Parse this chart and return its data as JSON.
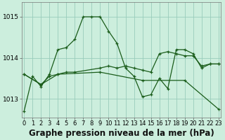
{
  "title": "Graphe pression niveau de la mer (hPa)",
  "bg_color": "#cceedd",
  "line_color": "#1a5c1a",
  "grid_color": "#99ccbb",
  "ylim": [
    1012.55,
    1015.35
  ],
  "xlim": [
    -0.3,
    23.3
  ],
  "yticks": [
    1013,
    1014,
    1015
  ],
  "xticks": [
    0,
    1,
    2,
    3,
    4,
    5,
    6,
    7,
    8,
    9,
    10,
    11,
    12,
    13,
    14,
    15,
    16,
    17,
    18,
    19,
    20,
    21,
    22,
    23
  ],
  "series": [
    {
      "x": [
        0,
        1,
        2,
        3,
        4,
        5,
        6,
        7,
        8,
        9,
        10,
        11,
        12,
        13,
        14,
        15,
        16,
        17,
        18,
        19,
        20,
        21,
        22,
        23
      ],
      "y": [
        1012.7,
        1013.55,
        1013.3,
        1013.6,
        1014.2,
        1014.25,
        1014.45,
        1015.0,
        1015.0,
        1015.0,
        1014.65,
        1014.35,
        1013.75,
        1013.55,
        1013.05,
        1013.1,
        1013.5,
        1013.25,
        1014.2,
        1014.2,
        1014.1,
        1013.75,
        1013.85,
        1013.85
      ]
    },
    {
      "x": [
        0,
        2,
        3,
        4,
        5,
        6,
        9,
        10,
        11,
        12,
        13,
        14,
        15,
        16,
        17,
        18,
        19,
        20,
        21,
        22,
        23
      ],
      "y": [
        1013.6,
        1013.35,
        1013.55,
        1013.6,
        1013.65,
        1013.65,
        1013.75,
        1013.8,
        1013.75,
        1013.8,
        1013.75,
        1013.7,
        1013.65,
        1014.1,
        1014.15,
        1014.1,
        1014.05,
        1014.05,
        1013.8,
        1013.85,
        1013.85
      ]
    },
    {
      "x": [
        0,
        2,
        4,
        9,
        14,
        19,
        23
      ],
      "y": [
        1013.6,
        1013.35,
        1013.6,
        1013.65,
        1013.45,
        1013.45,
        1012.75
      ]
    }
  ],
  "title_fontsize": 8.5,
  "tick_fontsize": 6,
  "lw": 0.9,
  "marker_size": 3.5,
  "marker_lw": 0.9
}
